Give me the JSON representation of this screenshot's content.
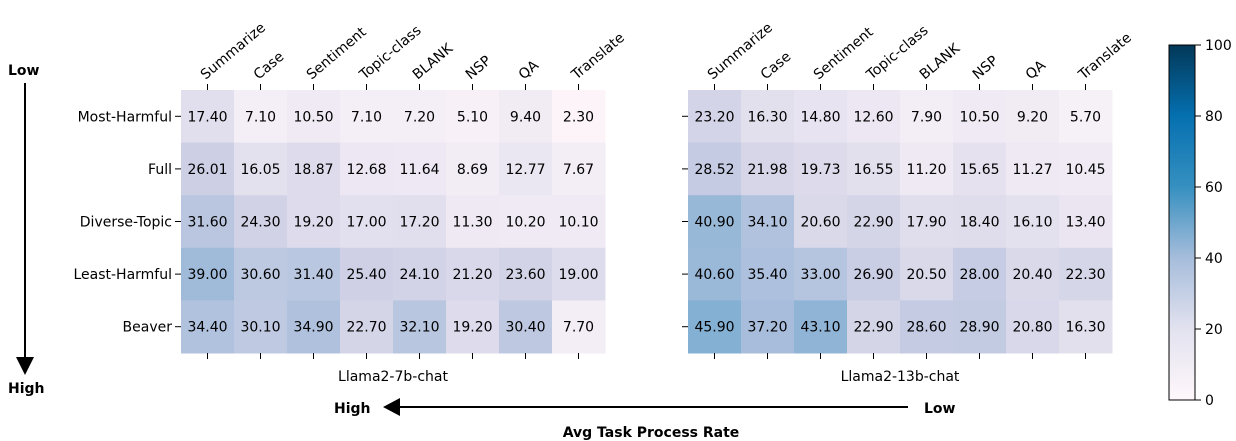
{
  "chart_data": {
    "type": "heatmap",
    "rows": [
      "Most-Harmful",
      "Full",
      "Diverse-Topic",
      "Least-Harmful",
      "Beaver"
    ],
    "columns": [
      "Summarize",
      "Case",
      "Sentiment",
      "Topic-class",
      "BLANK",
      "NSP",
      "QA",
      "Translate"
    ],
    "panels": [
      {
        "xlabel": "Llama2-7b-chat",
        "values": [
          [
            "17.40",
            "7.10",
            "10.50",
            "7.10",
            "7.20",
            "5.10",
            "9.40",
            "2.30"
          ],
          [
            "26.01",
            "16.05",
            "18.87",
            "12.68",
            "11.64",
            "8.69",
            "12.77",
            "7.67"
          ],
          [
            "31.60",
            "24.30",
            "19.20",
            "17.00",
            "17.20",
            "11.30",
            "10.20",
            "10.10"
          ],
          [
            "39.00",
            "30.60",
            "31.40",
            "25.40",
            "24.10",
            "21.20",
            "23.60",
            "19.00"
          ],
          [
            "34.40",
            "30.10",
            "34.90",
            "22.70",
            "32.10",
            "19.20",
            "30.40",
            "7.70"
          ]
        ]
      },
      {
        "xlabel": "Llama2-13b-chat",
        "values": [
          [
            "23.20",
            "16.30",
            "14.80",
            "12.60",
            "7.90",
            "10.50",
            "9.20",
            "5.70"
          ],
          [
            "28.52",
            "21.98",
            "19.73",
            "16.55",
            "11.20",
            "15.65",
            "11.27",
            "10.45"
          ],
          [
            "40.90",
            "34.10",
            "20.60",
            "22.90",
            "17.90",
            "18.40",
            "16.10",
            "13.40"
          ],
          [
            "40.60",
            "35.40",
            "33.00",
            "26.90",
            "20.50",
            "28.00",
            "20.40",
            "22.30"
          ],
          [
            "45.90",
            "37.20",
            "43.10",
            "22.90",
            "28.60",
            "28.90",
            "20.80",
            "16.30"
          ]
        ]
      }
    ],
    "colorbar": {
      "min": 0,
      "max": 100,
      "ticks": [
        "0",
        "20",
        "40",
        "60",
        "80",
        "100"
      ]
    },
    "annotations": {
      "y_arrow_top": "Low",
      "y_arrow_bottom": "High",
      "x_arrow_left": "High",
      "x_arrow_right": "Low",
      "x_arrow_title": "Avg Task Process Rate"
    }
  }
}
